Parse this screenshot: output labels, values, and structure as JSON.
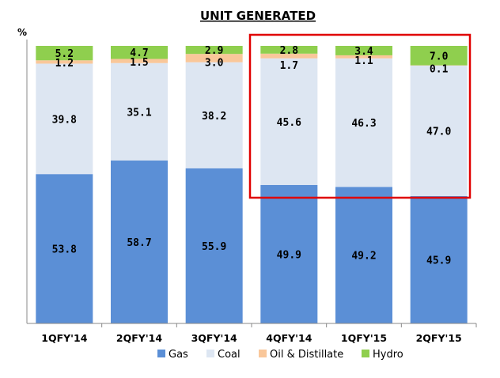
{
  "chart_data": {
    "type": "bar",
    "stacked": true,
    "title": "UNIT GENERATED",
    "ylabel": "%",
    "ylim": [
      0,
      100
    ],
    "grid": false,
    "legend_position": "bottom",
    "categories": [
      "1QFY'14",
      "2QFY'14",
      "3QFY'14",
      "4QFY'14",
      "1QFY'15",
      "2QFY'15"
    ],
    "series": [
      {
        "name": "Gas",
        "color": "#5b8fd6",
        "values": [
          53.8,
          58.7,
          55.9,
          49.9,
          49.2,
          45.9
        ],
        "labels": [
          "53.8",
          "58.7",
          "55.9",
          "49.9",
          "49.2",
          "45.9"
        ]
      },
      {
        "name": "Coal",
        "color": "#dde6f2",
        "values": [
          39.8,
          35.1,
          38.2,
          45.6,
          46.3,
          47.0
        ],
        "labels": [
          "39.8",
          "35.1",
          "38.2",
          "45.6",
          "46.3",
          "47.0"
        ]
      },
      {
        "name": "Oil & Distillate",
        "color": "#f9c79a",
        "values": [
          1.2,
          1.5,
          3.0,
          1.7,
          1.1,
          0.1
        ],
        "labels": [
          "1.2",
          "1.5",
          "3.0",
          "1.7",
          "1.1",
          "0.1"
        ]
      },
      {
        "name": "Hydro",
        "color": "#8fcf4e",
        "values": [
          5.2,
          4.7,
          2.9,
          2.8,
          3.4,
          7.0
        ],
        "labels": [
          "5.2",
          "4.7",
          "2.9",
          "2.8",
          "3.4",
          "7.0"
        ]
      }
    ],
    "highlight": {
      "from_category": "4QFY'14",
      "to_category": "2QFY'15",
      "color": "#e00000"
    }
  }
}
